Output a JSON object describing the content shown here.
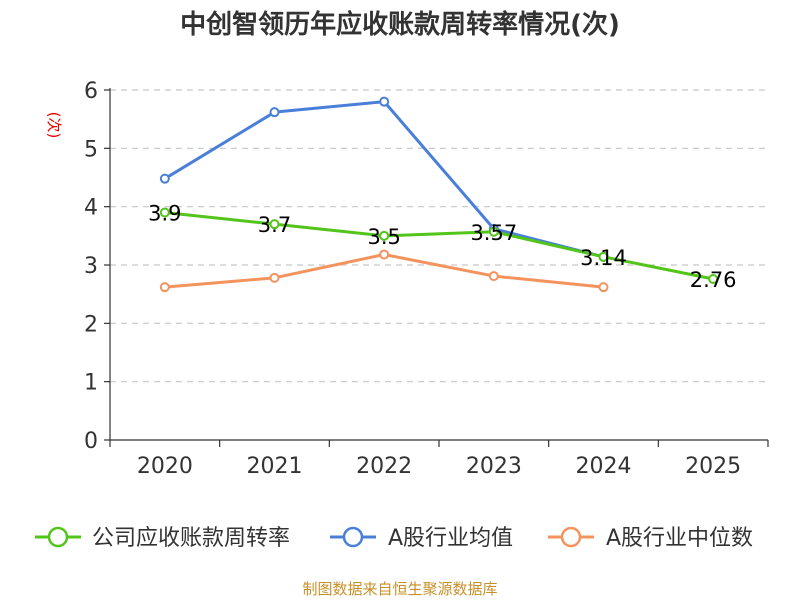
{
  "chart_data": {
    "type": "line",
    "title": "中创智领历年应收账款周转率情况(次)",
    "ylabel": "(次)",
    "xlabel": "",
    "categories": [
      "2020",
      "2021",
      "2022",
      "2023",
      "2024",
      "2025"
    ],
    "ylim": [
      0,
      6
    ],
    "yticks": [
      0,
      1,
      2,
      3,
      4,
      5,
      6
    ],
    "grid": true,
    "legend_position": "bottom",
    "series": [
      {
        "name": "公司应收账款周转率",
        "color": "#52c41a",
        "values": [
          3.9,
          3.7,
          3.5,
          3.57,
          3.14,
          2.76
        ],
        "labels": [
          "3.9",
          "3.7",
          "3.5",
          "3.57",
          "3.14",
          "2.76"
        ]
      },
      {
        "name": "A股行业均值",
        "color": "#4a7fd9",
        "values": [
          4.48,
          5.62,
          5.8,
          3.62,
          3.14,
          null
        ]
      },
      {
        "name": "A股行业中位数",
        "color": "#f4935e",
        "values": [
          2.62,
          2.78,
          3.18,
          2.81,
          2.62,
          null
        ]
      }
    ],
    "source": "制图数据来自恒生聚源数据库"
  }
}
